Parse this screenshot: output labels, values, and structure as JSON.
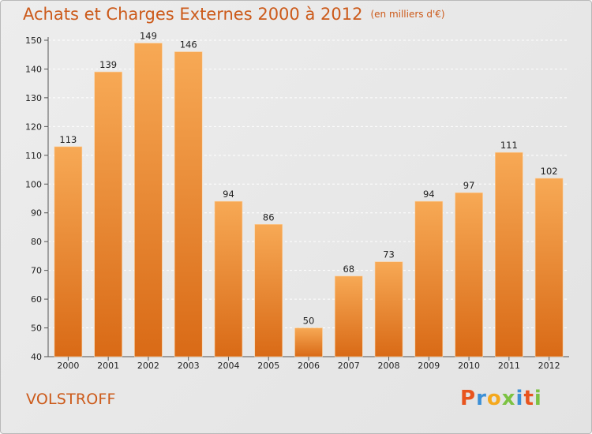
{
  "title": "Achats et Charges Externes 2000 à 2012",
  "unit": "(en milliers d'€)",
  "place": "VOLSTROFF",
  "logo": "Proxiti",
  "colors": {
    "bar_top": "#f7a955",
    "bar_bottom": "#d96a16",
    "title": "#cc5a1a",
    "grid": "#ffffff",
    "logo_letters": [
      "#e8541e",
      "#3b8fd6",
      "#f4a81d",
      "#7cc242",
      "#3b8fd6",
      "#e8541e",
      "#7cc242"
    ]
  },
  "chart_data": {
    "type": "bar",
    "title": "Achats et Charges Externes 2000 à 2012",
    "subtitle": "(en milliers d'€)",
    "categories": [
      "2000",
      "2001",
      "2002",
      "2003",
      "2004",
      "2005",
      "2006",
      "2007",
      "2008",
      "2009",
      "2010",
      "2011",
      "2012"
    ],
    "values": [
      113,
      139,
      149,
      146,
      94,
      86,
      50,
      68,
      73,
      94,
      97,
      111,
      102
    ],
    "ylim": [
      40,
      150
    ],
    "yticks": [
      40,
      50,
      60,
      70,
      80,
      90,
      100,
      110,
      120,
      130,
      140,
      150
    ],
    "grid": true,
    "legend": "none"
  }
}
